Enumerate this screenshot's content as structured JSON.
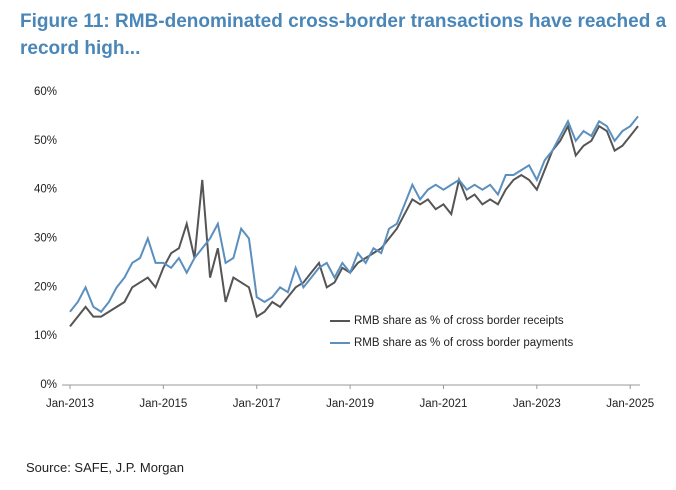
{
  "chart_data": {
    "type": "line",
    "title": "Figure 11: RMB-denominated cross-border transactions have reached a record high...",
    "source": "Source: SAFE, J.P. Morgan",
    "x": [
      "2013-01",
      "2013-03",
      "2013-05",
      "2013-07",
      "2013-09",
      "2013-11",
      "2014-01",
      "2014-03",
      "2014-05",
      "2014-07",
      "2014-09",
      "2014-11",
      "2015-01",
      "2015-03",
      "2015-05",
      "2015-07",
      "2015-09",
      "2015-11",
      "2016-01",
      "2016-03",
      "2016-05",
      "2016-07",
      "2016-09",
      "2016-11",
      "2017-01",
      "2017-03",
      "2017-05",
      "2017-07",
      "2017-09",
      "2017-11",
      "2018-01",
      "2018-03",
      "2018-05",
      "2018-07",
      "2018-09",
      "2018-11",
      "2019-01",
      "2019-03",
      "2019-05",
      "2019-07",
      "2019-09",
      "2019-11",
      "2020-01",
      "2020-03",
      "2020-05",
      "2020-07",
      "2020-09",
      "2020-11",
      "2021-01",
      "2021-03",
      "2021-05",
      "2021-07",
      "2021-09",
      "2021-11",
      "2022-01",
      "2022-03",
      "2022-05",
      "2022-07",
      "2022-09",
      "2022-11",
      "2023-01",
      "2023-03",
      "2023-05",
      "2023-07",
      "2023-09",
      "2023-11",
      "2024-01",
      "2024-03",
      "2024-05",
      "2024-07",
      "2024-09",
      "2024-11",
      "2025-01",
      "2025-03"
    ],
    "series": [
      {
        "name": "RMB share as % of cross border receipts",
        "color": "#555555",
        "values": [
          12,
          14,
          16,
          14,
          14,
          15,
          16,
          17,
          20,
          21,
          22,
          20,
          24,
          27,
          28,
          33,
          26,
          42,
          22,
          28,
          17,
          22,
          21,
          20,
          14,
          15,
          17,
          16,
          18,
          20,
          21,
          23,
          25,
          20,
          21,
          24,
          23,
          25,
          26,
          27,
          28,
          30,
          32,
          35,
          38,
          37,
          38,
          36,
          37,
          35,
          42,
          38,
          39,
          37,
          38,
          37,
          40,
          42,
          43,
          42,
          40,
          44,
          48,
          50,
          53,
          47,
          49,
          50,
          53,
          52,
          48,
          49,
          51,
          53
        ]
      },
      {
        "name": "RMB share as % of cross border payments",
        "color": "#5b8fbf",
        "values": [
          15,
          17,
          20,
          16,
          15,
          17,
          20,
          22,
          25,
          26,
          30,
          25,
          25,
          24,
          26,
          23,
          26,
          28,
          30,
          33,
          25,
          26,
          32,
          30,
          18,
          17,
          18,
          20,
          19,
          24,
          20,
          22,
          24,
          25,
          22,
          25,
          23,
          27,
          25,
          28,
          27,
          32,
          33,
          37,
          41,
          38,
          40,
          41,
          40,
          41,
          42,
          40,
          41,
          40,
          41,
          39,
          43,
          43,
          44,
          45,
          42,
          46,
          48,
          51,
          54,
          50,
          52,
          51,
          54,
          53,
          50,
          52,
          53,
          55
        ]
      }
    ],
    "xlim": [
      "2013-01",
      "2025-03"
    ],
    "xticks": [
      {
        "value": "2013-01",
        "label": "Jan-2013"
      },
      {
        "value": "2015-01",
        "label": "Jan-2015"
      },
      {
        "value": "2017-01",
        "label": "Jan-2017"
      },
      {
        "value": "2019-01",
        "label": "Jan-2019"
      },
      {
        "value": "2021-01",
        "label": "Jan-2021"
      },
      {
        "value": "2023-01",
        "label": "Jan-2023"
      },
      {
        "value": "2025-01",
        "label": "Jan-2025"
      }
    ],
    "ylim": [
      0,
      60
    ],
    "yticks": [
      {
        "value": 0,
        "label": "0%"
      },
      {
        "value": 10,
        "label": "10%"
      },
      {
        "value": 20,
        "label": "20%"
      },
      {
        "value": 30,
        "label": "30%"
      },
      {
        "value": 40,
        "label": "40%"
      },
      {
        "value": 50,
        "label": "50%"
      },
      {
        "value": 60,
        "label": "60%"
      }
    ],
    "legend": "lower right"
  }
}
